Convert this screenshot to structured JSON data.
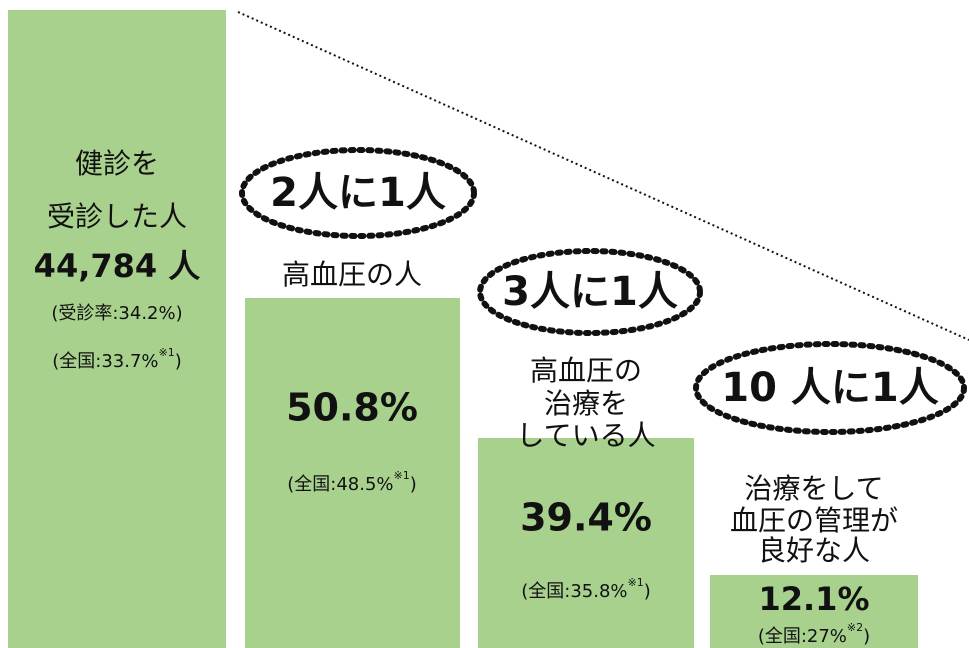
{
  "groups": [
    {
      "label": [
        "健診を",
        "受診した人"
      ],
      "value": "44,784 人",
      "rate": "(受診率:34.2%)",
      "national": "(全国:33.7%",
      "note": "※1",
      "close": ")"
    },
    {
      "label": [
        "高血圧の人"
      ],
      "value": "50.8%",
      "national": "(全国:48.5%",
      "note": "※1",
      "close": ")"
    },
    {
      "label": [
        "高血圧の",
        "治療を",
        "している人"
      ],
      "value": "39.4%",
      "national": "(全国:35.8%",
      "note": "※1",
      "close": ")"
    },
    {
      "label": [
        "治療をして",
        "血圧の管理が",
        "良好な人"
      ],
      "value": "12.1%",
      "national": "(全国:27%",
      "note": "※2",
      "close": ")"
    }
  ],
  "callouts": [
    "2人に1人",
    "3人に1人",
    "10 人に1人"
  ]
}
